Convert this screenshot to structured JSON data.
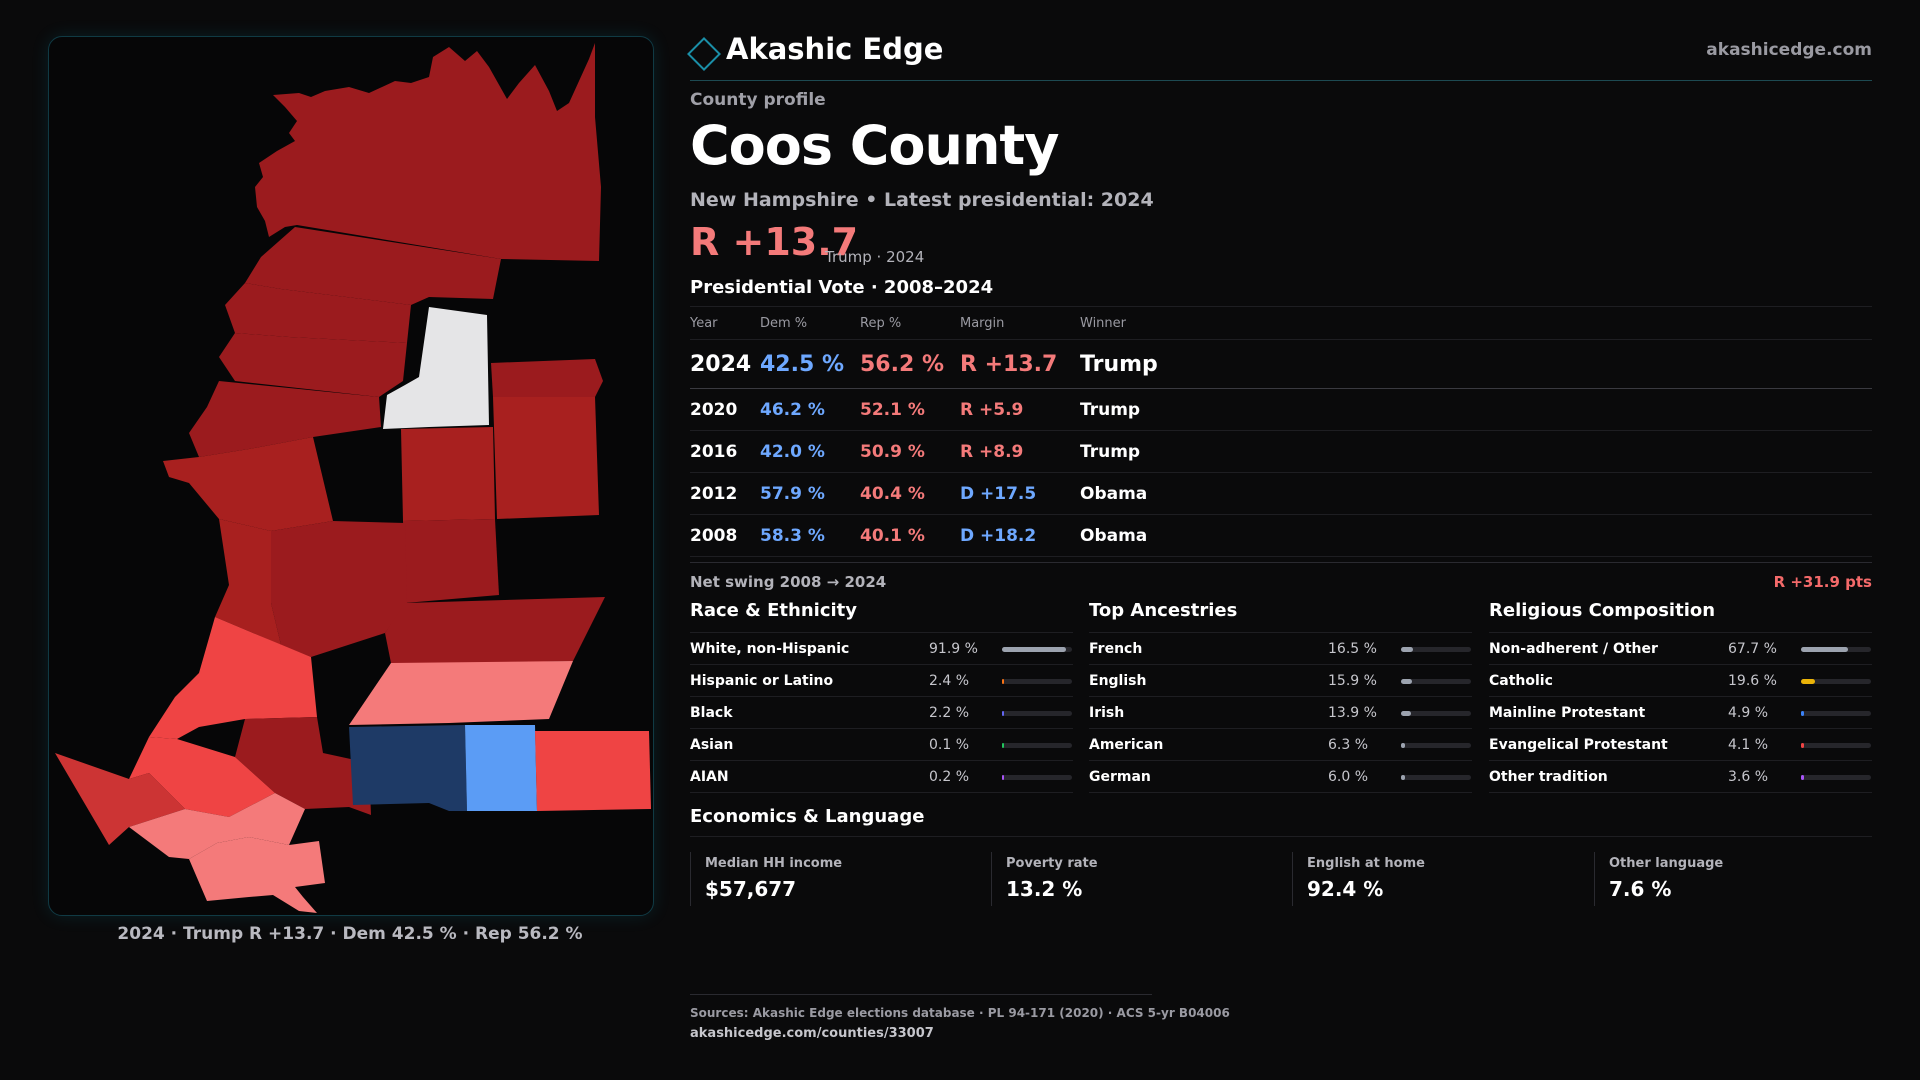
{
  "brand": {
    "name": "Akashic Edge",
    "url": "akashicedge.com"
  },
  "header": {
    "kicker": "County profile",
    "county": "Coos County",
    "subtitle": "New Hampshire • Latest presidential: 2024",
    "margin": "R +13.7",
    "margin_note": "Trump · 2024"
  },
  "map": {
    "caption": "2024 · Trump R +13.7 · Dem 42.5 % · Rep 56.2 %",
    "colors": {
      "dark_red": "#9b1b1e",
      "mid_red": "#a8201f",
      "red": "#ef4444",
      "light_red": "#f47a7a",
      "white": "#e5e5e7",
      "navy": "#1e3a66",
      "blue": "#5b9cf5"
    }
  },
  "votes": {
    "title": "Presidential Vote · 2008–2024",
    "headers": [
      "Year",
      "Dem %",
      "Rep %",
      "Margin",
      "Winner"
    ],
    "rows": [
      {
        "year": "2024",
        "dem": "42.5 %",
        "rep": "56.2 %",
        "margin": "R +13.7",
        "winner": "Trump"
      },
      {
        "year": "2020",
        "dem": "46.2 %",
        "rep": "52.1 %",
        "margin": "R +5.9",
        "winner": "Trump"
      },
      {
        "year": "2016",
        "dem": "42.0 %",
        "rep": "50.9 %",
        "margin": "R +8.9",
        "winner": "Trump"
      },
      {
        "year": "2012",
        "dem": "57.9 %",
        "rep": "40.4 %",
        "margin": "D +17.5",
        "winner": "Obama"
      },
      {
        "year": "2008",
        "dem": "58.3 %",
        "rep": "40.1 %",
        "margin": "D +18.2",
        "winner": "Obama"
      }
    ]
  },
  "swing": {
    "label": "Net swing 2008 → 2024",
    "value": "R +31.9 pts"
  },
  "race": {
    "title": "Race & Ethnicity",
    "items": [
      {
        "label": "White, non-Hispanic",
        "pct": "91.9 %",
        "value": 91.9,
        "color": "#9ca3af"
      },
      {
        "label": "Hispanic or Latino",
        "pct": "2.4 %",
        "value": 2.4,
        "color": "#f97316"
      },
      {
        "label": "Black",
        "pct": "2.2 %",
        "value": 2.2,
        "color": "#6366f1"
      },
      {
        "label": "Asian",
        "pct": "0.1 %",
        "value": 0.1,
        "color": "#22c55e"
      },
      {
        "label": "AIAN",
        "pct": "0.2 %",
        "value": 0.2,
        "color": "#a855f7"
      }
    ]
  },
  "ancestry": {
    "title": "Top Ancestries",
    "items": [
      {
        "label": "French",
        "pct": "16.5 %",
        "value": 16.5,
        "color": "#9ca3af"
      },
      {
        "label": "English",
        "pct": "15.9 %",
        "value": 15.9,
        "color": "#9ca3af"
      },
      {
        "label": "Irish",
        "pct": "13.9 %",
        "value": 13.9,
        "color": "#9ca3af"
      },
      {
        "label": "American",
        "pct": "6.3 %",
        "value": 6.3,
        "color": "#9ca3af"
      },
      {
        "label": "German",
        "pct": "6.0 %",
        "value": 6.0,
        "color": "#9ca3af"
      }
    ]
  },
  "religion": {
    "title": "Religious Composition",
    "items": [
      {
        "label": "Non-adherent / Other",
        "pct": "67.7 %",
        "value": 67.7,
        "color": "#9ca3af"
      },
      {
        "label": "Catholic",
        "pct": "19.6 %",
        "value": 19.6,
        "color": "#eab308"
      },
      {
        "label": "Mainline Protestant",
        "pct": "4.9 %",
        "value": 4.9,
        "color": "#3b82f6"
      },
      {
        "label": "Evangelical Protestant",
        "pct": "4.1 %",
        "value": 4.1,
        "color": "#ef4444"
      },
      {
        "label": "Other tradition",
        "pct": "3.6 %",
        "value": 3.6,
        "color": "#a855f7"
      }
    ]
  },
  "economics": {
    "title": "Economics & Language",
    "cells": [
      {
        "label": "Median HH income",
        "value": "$57,677"
      },
      {
        "label": "Poverty rate",
        "value": "13.2 %"
      },
      {
        "label": "English at home",
        "value": "92.4 %"
      },
      {
        "label": "Other language",
        "value": "7.6 %"
      }
    ]
  },
  "footer": {
    "sources": "Sources: Akashic Edge elections database · PL 94-171 (2020) · ACS 5-yr B04006",
    "url": "akashicedge.com/counties/33007"
  }
}
